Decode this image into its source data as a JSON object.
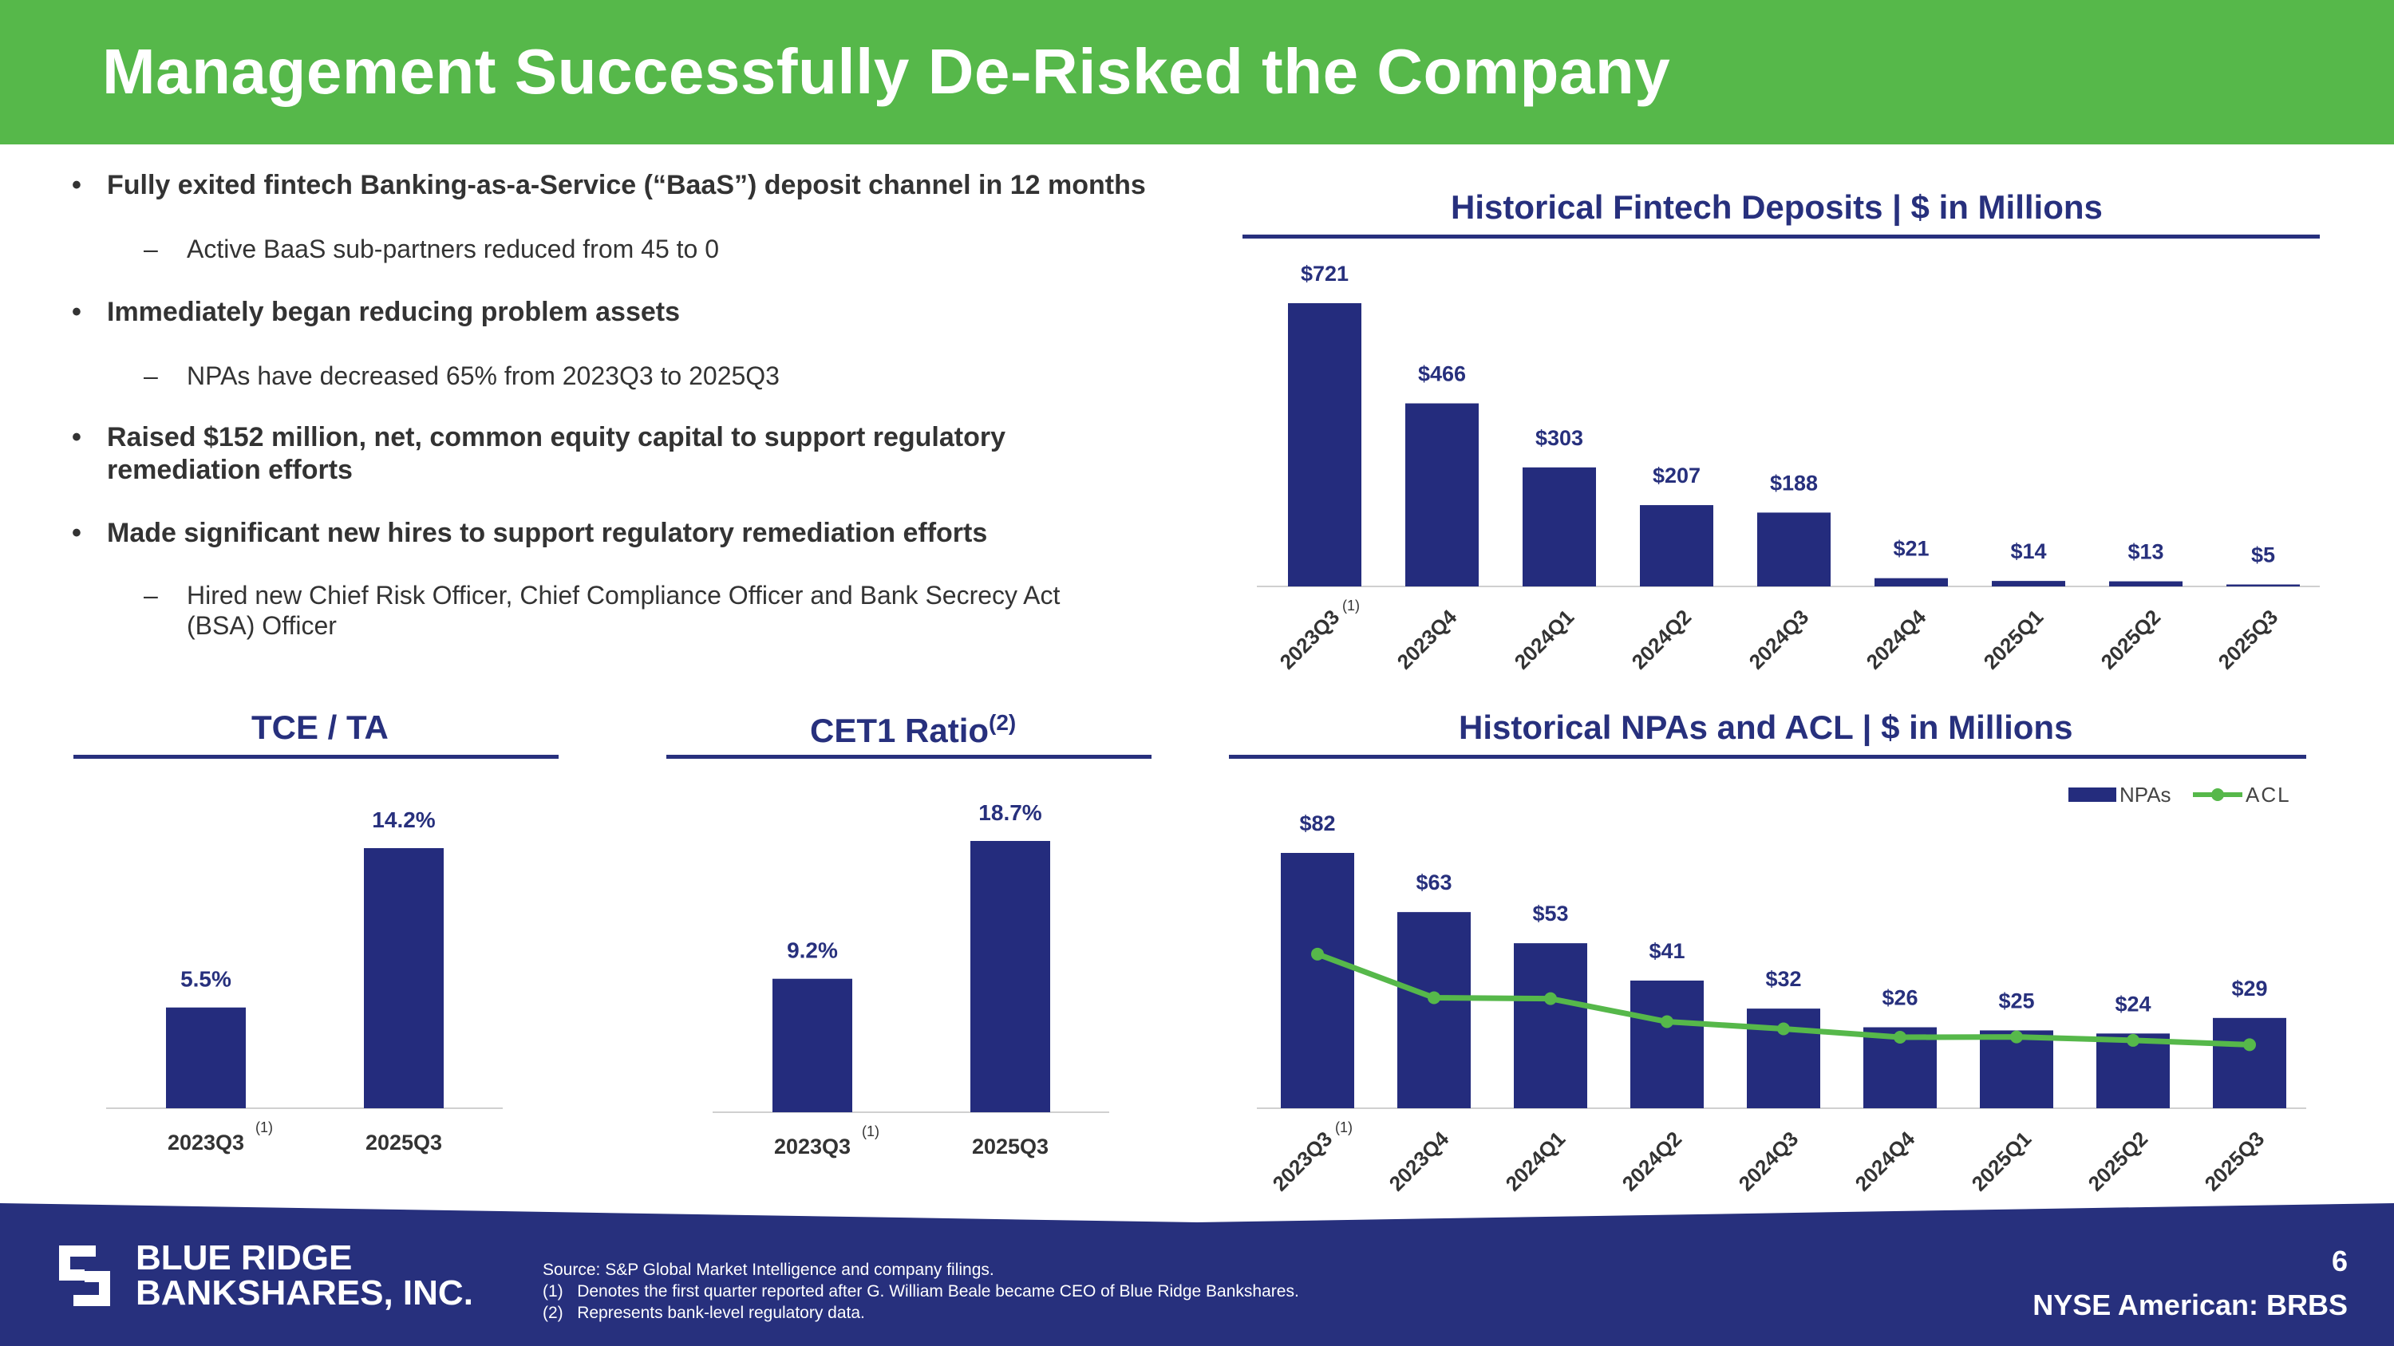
{
  "header": {
    "title": "Management Successfully De-Risked the Company"
  },
  "bullets": [
    {
      "text": "Fully exited fintech Banking-as-a-Service (“BaaS”) deposit channel in 12 months",
      "subs": [
        "Active BaaS sub-partners reduced from 45 to 0"
      ]
    },
    {
      "text": "Immediately began reducing problem assets",
      "subs": [
        "NPAs have decreased 65% from 2023Q3 to 2025Q3"
      ]
    },
    {
      "text": "Raised $152 million, net, common equity capital to support regulatory remediation efforts",
      "subs": []
    },
    {
      "text": "Made significant new hires to support regulatory remediation efforts",
      "subs": [
        "Hired new Chief Risk Officer, Chief Compliance Officer and Bank Secrecy Act (BSA) Officer"
      ]
    }
  ],
  "chart_data": [
    {
      "id": "fintech",
      "type": "bar",
      "title": "Historical Fintech Deposits | $ in Millions",
      "categories": [
        "2023Q3",
        "2023Q4",
        "2024Q1",
        "2024Q2",
        "2024Q3",
        "2024Q4",
        "2025Q1",
        "2025Q2",
        "2025Q3"
      ],
      "values": [
        721,
        466,
        303,
        207,
        188,
        21,
        14,
        13,
        5
      ],
      "labels": [
        "$721",
        "$466",
        "$303",
        "$207",
        "$188",
        "$21",
        "$14",
        "$13",
        "$5"
      ],
      "footnote_category": "2023Q3",
      "footnote_mark": "(1)",
      "ylim": [
        0,
        721
      ],
      "color": "#242c7d"
    },
    {
      "id": "tce",
      "type": "bar",
      "title": "TCE / TA",
      "categories": [
        "2023Q3",
        "2025Q3"
      ],
      "values": [
        5.5,
        14.2
      ],
      "labels": [
        "5.5%",
        "14.2%"
      ],
      "footnote_category": "2023Q3",
      "footnote_mark": "(1)",
      "ylim": [
        0,
        14.2
      ],
      "color": "#242c7d"
    },
    {
      "id": "cet1",
      "type": "bar",
      "title": "CET1 Ratio",
      "title_superscript": "(2)",
      "categories": [
        "2023Q3",
        "2025Q3"
      ],
      "values": [
        9.2,
        18.7
      ],
      "labels": [
        "9.2%",
        "18.7%"
      ],
      "footnote_category": "2023Q3",
      "footnote_mark": "(1)",
      "ylim": [
        0,
        18.7
      ],
      "color": "#242c7d"
    },
    {
      "id": "npa",
      "type": "bar",
      "title": "Historical NPAs and ACL | $ in Millions",
      "categories": [
        "2023Q3",
        "2023Q4",
        "2024Q1",
        "2024Q2",
        "2024Q3",
        "2024Q4",
        "2025Q1",
        "2025Q2",
        "2025Q3"
      ],
      "series": [
        {
          "name": "NPAs",
          "type": "bar",
          "values": [
            82,
            63,
            53,
            41,
            32,
            26,
            25,
            24,
            29
          ],
          "labels": [
            "$82",
            "$63",
            "$53",
            "$41",
            "$32",
            "$26",
            "$25",
            "$24",
            "$29"
          ],
          "color": "#242c7d"
        },
        {
          "name": "ACL",
          "type": "line",
          "values": [
            49.5,
            35.5,
            35.2,
            27.8,
            25.5,
            22.8,
            22.9,
            21.8,
            20.4
          ],
          "color": "#56b84a"
        }
      ],
      "legend": "top-right",
      "footnote_category": "2023Q3",
      "footnote_mark": "(1)",
      "ylim": [
        0,
        82
      ]
    }
  ],
  "footer": {
    "logo_line1": "BLUE RIDGE",
    "logo_line2": "BANKSHARES, INC.",
    "source": "Source: S&P Global Market Intelligence and company filings.",
    "notes": [
      {
        "mark": "(1)",
        "text": "Denotes the first quarter reported after G. William Beale became CEO of Blue Ridge Bankshares."
      },
      {
        "mark": "(2)",
        "text": "Represents bank-level regulatory data."
      }
    ],
    "page_number": "6",
    "ticker": "NYSE American: BRBS",
    "colors": {
      "navy": "#27307d",
      "green": "#56b84a"
    }
  }
}
